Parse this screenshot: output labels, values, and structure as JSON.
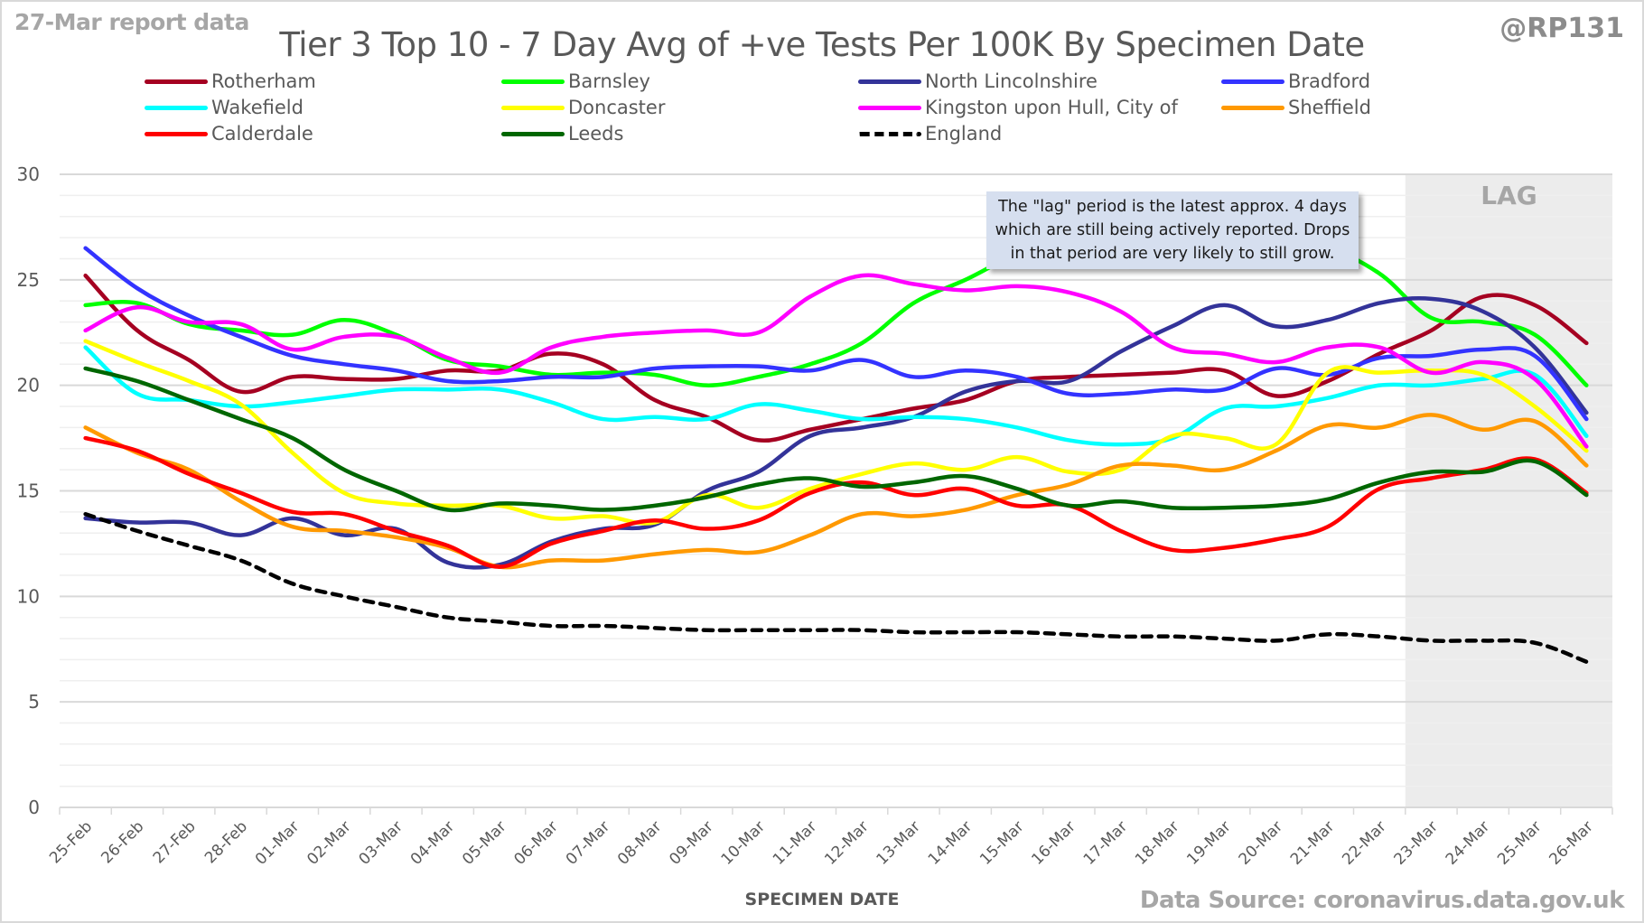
{
  "header": {
    "report_label": "27-Mar report data",
    "handle": "@RP131",
    "source": "Data Source: coronavirus.data.gov.uk"
  },
  "annotation": {
    "text": "The \"lag\" period is the latest approx. 4 days which are still being actively reported.  Drops in that period are very likely to still grow.",
    "lag_label": "LAG"
  },
  "chart_data": {
    "type": "line",
    "title": "Tier 3 Top 10 - 7 Day Avg of +ve Tests Per 100K By Specimen Date",
    "xlabel": "SPECIMEN DATE",
    "ylabel": "",
    "ylim": [
      0,
      30
    ],
    "yticks": [
      0,
      5,
      10,
      15,
      20,
      25,
      30
    ],
    "minor_grid_step": 1,
    "grid": true,
    "legend_position": "top",
    "lag_region": {
      "from": "23-Mar",
      "to": "26-Mar",
      "label": "LAG"
    },
    "categories": [
      "25-Feb",
      "26-Feb",
      "27-Feb",
      "28-Feb",
      "01-Mar",
      "02-Mar",
      "03-Mar",
      "04-Mar",
      "05-Mar",
      "06-Mar",
      "07-Mar",
      "08-Mar",
      "09-Mar",
      "10-Mar",
      "11-Mar",
      "12-Mar",
      "13-Mar",
      "14-Mar",
      "15-Mar",
      "16-Mar",
      "17-Mar",
      "18-Mar",
      "19-Mar",
      "20-Mar",
      "21-Mar",
      "22-Mar",
      "23-Mar",
      "24-Mar",
      "25-Mar",
      "26-Mar"
    ],
    "series": [
      {
        "name": "Rotherham",
        "color": "#a50021",
        "dashed": false,
        "values": [
          25.2,
          22.6,
          21.2,
          19.7,
          20.4,
          20.3,
          20.3,
          20.7,
          20.7,
          21.5,
          21.0,
          19.3,
          18.5,
          17.4,
          17.9,
          18.4,
          18.9,
          19.3,
          20.2,
          20.4,
          20.5,
          20.6,
          20.7,
          19.5,
          20.2,
          21.5,
          22.6,
          24.2,
          23.8,
          22.0
        ]
      },
      {
        "name": "Barnsley",
        "color": "#00ff00",
        "dashed": false,
        "values": [
          23.8,
          23.9,
          22.9,
          22.6,
          22.4,
          23.1,
          22.4,
          21.2,
          20.9,
          20.5,
          20.6,
          20.5,
          20.0,
          20.4,
          21.0,
          22.0,
          23.9,
          25.0,
          26.2,
          26.8,
          27.0,
          27.0,
          27.0,
          26.8,
          26.5,
          25.3,
          23.2,
          23.0,
          22.4,
          20.0
        ]
      },
      {
        "name": "North Lincolnshire",
        "color": "#333399",
        "dashed": false,
        "values": [
          13.7,
          13.5,
          13.5,
          12.9,
          13.7,
          12.9,
          13.2,
          11.6,
          11.5,
          12.6,
          13.2,
          13.4,
          15.0,
          15.9,
          17.6,
          18.0,
          18.5,
          19.7,
          20.2,
          20.2,
          21.6,
          22.8,
          23.8,
          22.8,
          23.1,
          23.9,
          24.1,
          23.5,
          21.8,
          18.7
        ]
      },
      {
        "name": "Bradford",
        "color": "#3333ff",
        "dashed": false,
        "values": [
          26.5,
          24.6,
          23.3,
          22.3,
          21.4,
          21.0,
          20.7,
          20.2,
          20.2,
          20.4,
          20.4,
          20.8,
          20.9,
          20.9,
          20.7,
          21.2,
          20.4,
          20.7,
          20.4,
          19.6,
          19.6,
          19.8,
          19.8,
          20.8,
          20.5,
          21.3,
          21.4,
          21.7,
          21.4,
          18.4
        ]
      },
      {
        "name": "Wakefield",
        "color": "#00ffff",
        "dashed": false,
        "values": [
          21.8,
          19.6,
          19.3,
          19.0,
          19.2,
          19.5,
          19.8,
          19.8,
          19.8,
          19.2,
          18.4,
          18.5,
          18.4,
          19.1,
          18.8,
          18.4,
          18.5,
          18.4,
          18.0,
          17.4,
          17.2,
          17.5,
          18.9,
          19.0,
          19.4,
          20.0,
          20.0,
          20.3,
          20.5,
          17.6
        ]
      },
      {
        "name": "Doncaster",
        "color": "#ffff00",
        "dashed": false,
        "values": [
          22.1,
          21.1,
          20.2,
          19.1,
          16.8,
          14.9,
          14.4,
          14.3,
          14.3,
          13.7,
          13.8,
          13.5,
          14.8,
          14.2,
          15.1,
          15.8,
          16.3,
          16.0,
          16.6,
          15.9,
          16.0,
          17.6,
          17.5,
          17.2,
          20.6,
          20.6,
          20.7,
          20.5,
          19.0,
          16.9
        ]
      },
      {
        "name": "Kingston upon Hull, City of",
        "color": "#ff00ff",
        "dashed": false,
        "values": [
          22.6,
          23.7,
          23.0,
          22.9,
          21.7,
          22.3,
          22.3,
          21.3,
          20.6,
          21.8,
          22.3,
          22.5,
          22.6,
          22.5,
          24.2,
          25.2,
          24.8,
          24.5,
          24.7,
          24.4,
          23.5,
          21.8,
          21.5,
          21.1,
          21.8,
          21.8,
          20.6,
          21.1,
          20.3,
          17.1
        ]
      },
      {
        "name": "Sheffield",
        "color": "#ff9900",
        "dashed": false,
        "values": [
          18.0,
          16.8,
          16.0,
          14.5,
          13.3,
          13.1,
          12.8,
          12.3,
          11.4,
          11.7,
          11.7,
          12.0,
          12.2,
          12.1,
          12.9,
          13.9,
          13.8,
          14.1,
          14.8,
          15.3,
          16.2,
          16.2,
          16.0,
          16.9,
          18.1,
          18.0,
          18.6,
          17.9,
          18.3,
          16.2
        ]
      },
      {
        "name": "Calderdale",
        "color": "#ff0000",
        "dashed": false,
        "values": [
          17.5,
          16.9,
          15.8,
          14.9,
          14.0,
          13.9,
          13.1,
          12.4,
          11.4,
          12.5,
          13.1,
          13.6,
          13.2,
          13.6,
          14.9,
          15.4,
          14.8,
          15.1,
          14.3,
          14.3,
          13.1,
          12.2,
          12.3,
          12.7,
          13.3,
          15.1,
          15.6,
          16.0,
          16.5,
          14.9
        ]
      },
      {
        "name": "Leeds",
        "color": "#006600",
        "dashed": false,
        "values": [
          20.8,
          20.2,
          19.3,
          18.4,
          17.5,
          16.0,
          15.0,
          14.1,
          14.4,
          14.3,
          14.1,
          14.3,
          14.7,
          15.3,
          15.6,
          15.2,
          15.4,
          15.7,
          15.1,
          14.3,
          14.5,
          14.2,
          14.2,
          14.3,
          14.6,
          15.4,
          15.9,
          15.9,
          16.4,
          14.8
        ]
      },
      {
        "name": "England",
        "color": "#000000",
        "dashed": true,
        "values": [
          13.9,
          13.1,
          12.4,
          11.7,
          10.6,
          10.0,
          9.5,
          9.0,
          8.8,
          8.6,
          8.6,
          8.5,
          8.4,
          8.4,
          8.4,
          8.4,
          8.3,
          8.3,
          8.3,
          8.2,
          8.1,
          8.1,
          8.0,
          7.9,
          8.2,
          8.1,
          7.9,
          7.9,
          7.8,
          6.9
        ]
      }
    ]
  }
}
